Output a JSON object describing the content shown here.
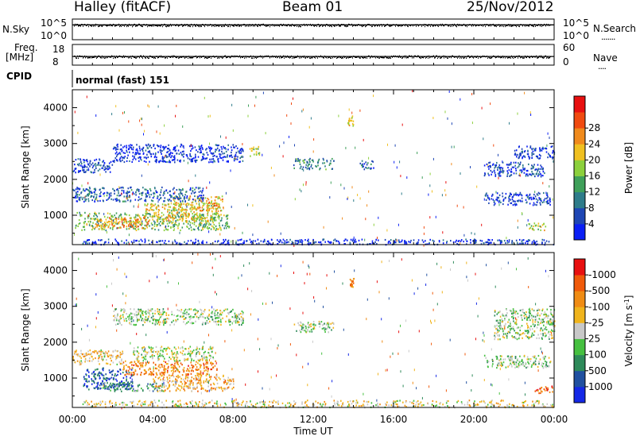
{
  "header": {
    "station": "Halley (fitACF)",
    "beam": "Beam 01",
    "date": "25/Nov/2012"
  },
  "strip": {
    "nsky_label": "N.Sky",
    "nsearch_label": "N.Search",
    "nsky_ticks": [
      "10^5",
      "10^0"
    ],
    "nsearch_ticks": [
      "10^5",
      "10^0"
    ],
    "freq_label_1": "Freq.",
    "freq_label_2": "[MHz]",
    "freq_ticks": [
      "18",
      "8"
    ],
    "nave_label": "Nave",
    "nave_ticks": [
      "60",
      "0"
    ],
    "cpid_label": "CPID",
    "cpid_value": "normal (fast) 151",
    "dots": "......."
  },
  "chart_data": [
    {
      "type": "heatmap",
      "name": "power",
      "ylabel": "Slant Range [km]",
      "ylim": [
        180,
        4500
      ],
      "yticks": [
        "1000",
        "2000",
        "3000",
        "4000"
      ],
      "xlim": [
        0,
        24
      ],
      "colorbar": {
        "label": "Power [dB]",
        "tick_labels": [
          "4",
          "8",
          "12",
          "16",
          "20",
          "24",
          "28"
        ],
        "colors": [
          "#0a1ff5",
          "#1e46b4",
          "#2e7c8a",
          "#3fa05a",
          "#8cd03c",
          "#f0c020",
          "#f08a1c",
          "#f04a10",
          "#e81010"
        ]
      },
      "echo_regions": [
        {
          "t0": 0.1,
          "t1": 7.8,
          "r0": 600,
          "r1": 1100,
          "level": 0.45
        },
        {
          "t0": 1.0,
          "t1": 3.8,
          "r0": 650,
          "r1": 950,
          "level": 0.7
        },
        {
          "t0": 3.5,
          "t1": 7.3,
          "r0": 850,
          "r1": 1350,
          "level": 0.6
        },
        {
          "t0": 5.0,
          "t1": 7.5,
          "r0": 1150,
          "r1": 1550,
          "level": 0.65
        },
        {
          "t0": 0.0,
          "t1": 6.5,
          "r0": 1400,
          "r1": 1800,
          "level": 0.2
        },
        {
          "t0": 0.0,
          "t1": 2.0,
          "r0": 2200,
          "r1": 2600,
          "level": 0.15
        },
        {
          "t0": 2.0,
          "t1": 8.5,
          "r0": 2500,
          "r1": 3000,
          "level": 0.1
        },
        {
          "t0": 8.8,
          "t1": 9.3,
          "r0": 2650,
          "r1": 2950,
          "level": 0.5
        },
        {
          "t0": 11.0,
          "t1": 13.0,
          "r0": 2300,
          "r1": 2600,
          "level": 0.3
        },
        {
          "t0": 14.3,
          "t1": 15.0,
          "r0": 2300,
          "r1": 2550,
          "level": 0.25
        },
        {
          "t0": 13.7,
          "t1": 14.0,
          "r0": 3500,
          "r1": 3800,
          "level": 0.6
        },
        {
          "t0": 20.5,
          "t1": 23.8,
          "r0": 1300,
          "r1": 1650,
          "level": 0.1
        },
        {
          "t0": 20.5,
          "t1": 23.5,
          "r0": 2100,
          "r1": 2500,
          "level": 0.15
        },
        {
          "t0": 22.0,
          "t1": 24.0,
          "r0": 2600,
          "r1": 2950,
          "level": 0.1
        },
        {
          "t0": 22.6,
          "t1": 23.6,
          "r0": 600,
          "r1": 800,
          "level": 0.55
        },
        {
          "t0": 0.5,
          "t1": 24.0,
          "r0": 200,
          "r1": 350,
          "level": 0.1
        }
      ]
    },
    {
      "type": "heatmap",
      "name": "velocity",
      "ylabel": "Slant Range [km]",
      "ylim": [
        180,
        4500
      ],
      "yticks": [
        "1000",
        "2000",
        "3000",
        "4000"
      ],
      "xlim": [
        0,
        24
      ],
      "xticks": [
        "00:00",
        "04:00",
        "08:00",
        "12:00",
        "16:00",
        "20:00",
        "00:00"
      ],
      "xlabel": "Time UT",
      "colorbar": {
        "label": "Velocity [m s",
        "label_sup": "-1",
        "label_end": "]",
        "tick_labels": [
          "1000",
          "500",
          "100",
          "25",
          "-25",
          "-100",
          "-500",
          "-1000"
        ],
        "colors": [
          "#1428e6",
          "#2050a0",
          "#2e8a5a",
          "#46c040",
          "#c8c8c8",
          "#f0b41c",
          "#f08c14",
          "#f05a0a",
          "#e81010"
        ]
      },
      "echo_regions": [
        {
          "t0": 0.5,
          "t1": 3.0,
          "r0": 700,
          "r1": 1300,
          "level": 0.15
        },
        {
          "t0": 1.5,
          "t1": 4.5,
          "r0": 650,
          "r1": 900,
          "level": 0.3
        },
        {
          "t0": 4.0,
          "t1": 8.0,
          "r0": 650,
          "r1": 1100,
          "level": 0.65
        },
        {
          "t0": 2.5,
          "t1": 7.2,
          "r0": 1100,
          "r1": 1500,
          "level": 0.75
        },
        {
          "t0": 0.0,
          "t1": 2.5,
          "r0": 1400,
          "r1": 1800,
          "level": 0.6
        },
        {
          "t0": 3.0,
          "t1": 7.0,
          "r0": 1500,
          "r1": 1900,
          "level": 0.5
        },
        {
          "t0": 2.0,
          "t1": 8.5,
          "r0": 2500,
          "r1": 2950,
          "level": 0.45
        },
        {
          "t0": 11.0,
          "t1": 13.0,
          "r0": 2300,
          "r1": 2600,
          "level": 0.45
        },
        {
          "t0": 13.8,
          "t1": 14.0,
          "r0": 3550,
          "r1": 3800,
          "level": 0.7
        },
        {
          "t0": 20.5,
          "t1": 23.8,
          "r0": 1300,
          "r1": 1650,
          "level": 0.45
        },
        {
          "t0": 21.0,
          "t1": 24.0,
          "r0": 2100,
          "r1": 2950,
          "level": 0.45
        },
        {
          "t0": 23.0,
          "t1": 23.9,
          "r0": 600,
          "r1": 800,
          "level": 0.8
        },
        {
          "t0": 0.5,
          "t1": 24.0,
          "r0": 200,
          "r1": 400,
          "level": 0.55
        }
      ]
    }
  ],
  "series_strip": [
    {
      "name": "N.Sky",
      "level": 0.72
    },
    {
      "name": "Freq.",
      "level": 0.42
    }
  ]
}
